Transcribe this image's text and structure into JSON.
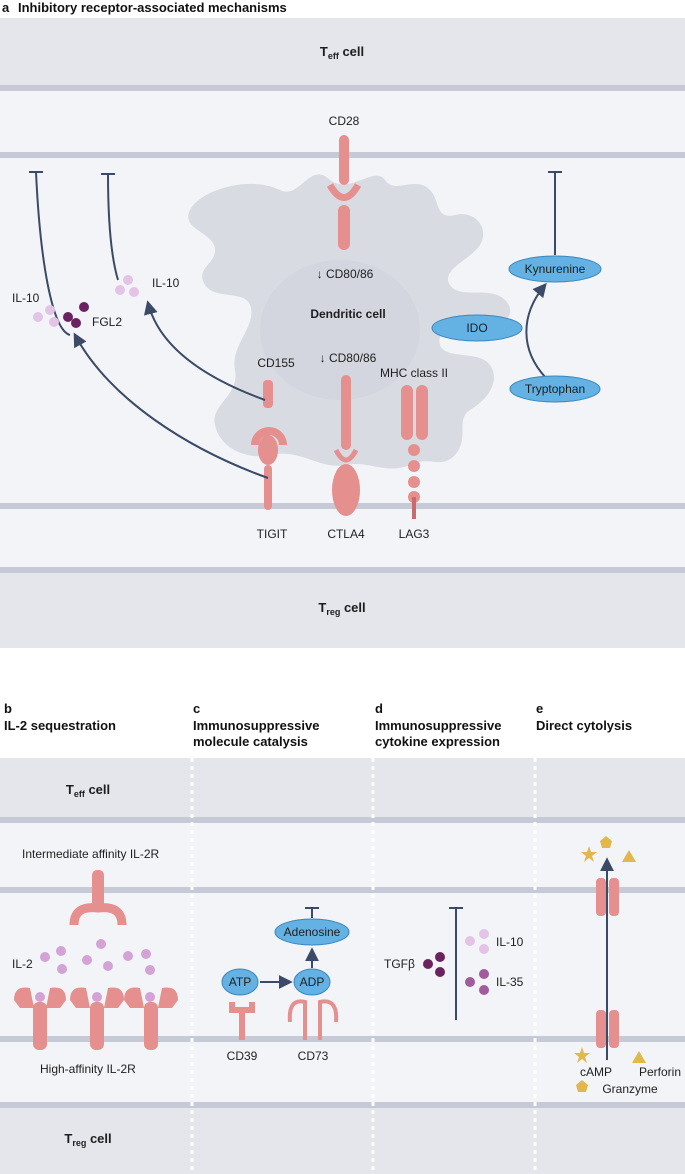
{
  "panel_a": {
    "letter": "a",
    "title": "Inhibitory receptor-associated mechanisms",
    "teff_cell": {
      "main": "T",
      "sub": "eff",
      "suffix": " cell"
    },
    "treg_cell": {
      "main": "T",
      "sub": "reg",
      "suffix": " cell"
    },
    "cd28": "CD28",
    "cd80_top": "↓ CD80/86",
    "cd80_mid": "↓ CD80/86",
    "dendritic_cell": "Dendritic cell",
    "cd155": "CD155",
    "mhc": "MHC class II",
    "tigit": "TIGIT",
    "ctla4": "CTLA4",
    "lag3": "LAG3",
    "il10_left": "IL-10",
    "fgl2": "FGL2",
    "il10_mid": "IL-10",
    "kynurenine": "Kynurenine",
    "ido": "IDO",
    "tryptophan": "Tryptophan"
  },
  "panel_b": {
    "letter": "b",
    "title": "IL-2 sequestration",
    "teff_cell": {
      "main": "T",
      "sub": "eff",
      "suffix": " cell"
    },
    "treg_cell": {
      "main": "T",
      "sub": "reg",
      "suffix": " cell"
    },
    "intermediate": "Intermediate affinity IL-2R",
    "il2": "IL-2",
    "high_affinity": "High-affinity IL-2R"
  },
  "panel_c": {
    "letter": "c",
    "title_line1": "Immunosuppressive",
    "title_line2": "molecule catalysis",
    "adenosine": "Adenosine",
    "atp": "ATP",
    "adp": "ADP",
    "cd39": "CD39",
    "cd73": "CD73"
  },
  "panel_d": {
    "letter": "d",
    "title_line1": "Immunosuppressive",
    "title_line2": "cytokine expression",
    "tgfb": "TGFβ",
    "il10": "IL-10",
    "il35": "IL-35"
  },
  "panel_e": {
    "letter": "e",
    "title": "Direct cytolysis",
    "camp": "cAMP",
    "perforin": "Perforin",
    "granzyme": "Granzyme"
  },
  "colors": {
    "cell_body": "#e7e8ec",
    "membrane": "#c6cad6",
    "background_band": "#f3f4f7",
    "receptor": "#e58f8f",
    "receptor_dark": "#c96b6b",
    "dc": "#d9dbe3",
    "arrow": "#3b4a66",
    "pill": "#63b2e3",
    "pill_stroke": "#3a86bd",
    "dot_light": "#e3c4e6",
    "dot_dark": "#6a2360",
    "dot_mid": "#a05c9c",
    "gold": "#e2b84d"
  }
}
